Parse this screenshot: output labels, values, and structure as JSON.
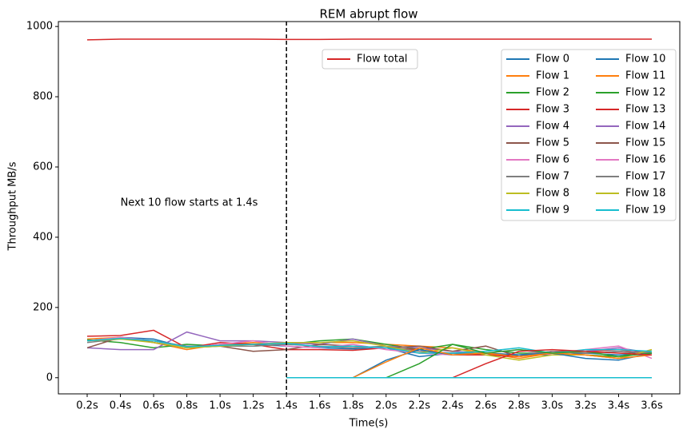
{
  "chart_data": {
    "type": "line",
    "title": "REM abrupt flow",
    "xlabel": "Time(s)",
    "ylabel": "Throughput MB/s",
    "categories": [
      "0.2s",
      "0.4s",
      "0.6s",
      "0.8s",
      "1.0s",
      "1.2s",
      "1.4s",
      "1.6s",
      "1.8s",
      "2.0s",
      "2.2s",
      "2.4s",
      "2.6s",
      "2.8s",
      "3.0s",
      "3.2s",
      "3.4s",
      "3.6s"
    ],
    "ylim": [
      -46,
      1014
    ],
    "yticks": [
      0,
      200,
      400,
      600,
      800,
      1000
    ],
    "vline": "1.4s",
    "annotation": {
      "text": "Next 10 flow starts at 1.4s",
      "x": "0.8s",
      "y": 498
    },
    "total": {
      "name": "Flow total",
      "color": "#d62728",
      "values": [
        962,
        964,
        964,
        964,
        964,
        964,
        963,
        963,
        964,
        964,
        964,
        964,
        964,
        964,
        964,
        964,
        964,
        964
      ]
    },
    "series": [
      {
        "name": "Flow 0",
        "color": "#1f77b4",
        "values": [
          105,
          115,
          110,
          85,
          95,
          95,
          90,
          85,
          82,
          85,
          60,
          70,
          65,
          65,
          65,
          70,
          65,
          70
        ]
      },
      {
        "name": "Flow 1",
        "color": "#ff7f0e",
        "values": [
          110,
          115,
          100,
          80,
          95,
          100,
          95,
          100,
          100,
          95,
          90,
          85,
          70,
          55,
          70,
          65,
          55,
          80
        ]
      },
      {
        "name": "Flow 2",
        "color": "#2ca02c",
        "values": [
          108,
          100,
          85,
          95,
          90,
          90,
          95,
          105,
          110,
          95,
          80,
          95,
          80,
          70,
          70,
          65,
          60,
          75
        ]
      },
      {
        "name": "Flow 3",
        "color": "#d62728",
        "values": [
          118,
          120,
          135,
          85,
          100,
          95,
          80,
          80,
          78,
          85,
          80,
          65,
          65,
          60,
          75,
          75,
          80,
          70
        ]
      },
      {
        "name": "Flow 4",
        "color": "#9467bd",
        "values": [
          85,
          80,
          80,
          130,
          105,
          105,
          100,
          95,
          110,
          90,
          85,
          75,
          70,
          65,
          70,
          75,
          85,
          70
        ]
      },
      {
        "name": "Flow 5",
        "color": "#8c564b",
        "values": [
          85,
          115,
          100,
          85,
          90,
          75,
          80,
          95,
          90,
          85,
          90,
          75,
          90,
          60,
          75,
          70,
          75,
          65
        ]
      },
      {
        "name": "Flow 6",
        "color": "#e377c2",
        "values": [
          105,
          115,
          105,
          85,
          95,
          105,
          90,
          85,
          95,
          80,
          70,
          65,
          70,
          80,
          65,
          80,
          90,
          55
        ]
      },
      {
        "name": "Flow 7",
        "color": "#7f7f7f",
        "values": [
          100,
          110,
          105,
          90,
          90,
          90,
          95,
          90,
          85,
          90,
          75,
          70,
          70,
          65,
          75,
          70,
          75,
          70
        ]
      },
      {
        "name": "Flow 8",
        "color": "#bcbd22",
        "values": [
          105,
          110,
          100,
          85,
          90,
          95,
          100,
          100,
          105,
          90,
          70,
          85,
          65,
          50,
          65,
          65,
          55,
          80
        ]
      },
      {
        "name": "Flow 9",
        "color": "#17becf",
        "values": [
          105,
          112,
          105,
          88,
          92,
          95,
          98,
          88,
          90,
          85,
          70,
          70,
          75,
          85,
          70,
          80,
          80,
          75
        ]
      },
      {
        "name": "Flow 10",
        "color": "#1f77b4",
        "values": [
          null,
          null,
          null,
          null,
          null,
          null,
          0,
          0,
          0,
          50,
          80,
          65,
          70,
          65,
          70,
          55,
          50,
          70
        ]
      },
      {
        "name": "Flow 11",
        "color": "#ff7f0e",
        "values": [
          null,
          null,
          null,
          null,
          null,
          null,
          0,
          0,
          0,
          45,
          85,
          65,
          70,
          60,
          70,
          65,
          55,
          65
        ]
      },
      {
        "name": "Flow 12",
        "color": "#2ca02c",
        "values": [
          null,
          null,
          null,
          null,
          null,
          null,
          0,
          0,
          0,
          0,
          40,
          95,
          70,
          80,
          70,
          75,
          60,
          70
        ]
      },
      {
        "name": "Flow 13",
        "color": "#d62728",
        "values": [
          null,
          null,
          null,
          null,
          null,
          null,
          0,
          0,
          0,
          0,
          0,
          0,
          40,
          75,
          80,
          75,
          70,
          65
        ]
      },
      {
        "name": "Flow 14",
        "color": "#9467bd",
        "values": [
          null,
          null,
          null,
          null,
          null,
          null,
          0,
          0,
          0,
          0,
          0,
          0,
          0,
          0,
          0,
          0,
          0,
          0
        ]
      },
      {
        "name": "Flow 15",
        "color": "#8c564b",
        "values": [
          null,
          null,
          null,
          null,
          null,
          null,
          0,
          0,
          0,
          0,
          0,
          0,
          0,
          0,
          0,
          0,
          0,
          0
        ]
      },
      {
        "name": "Flow 16",
        "color": "#e377c2",
        "values": [
          null,
          null,
          null,
          null,
          null,
          null,
          0,
          0,
          0,
          0,
          0,
          0,
          0,
          0,
          0,
          0,
          0,
          0
        ]
      },
      {
        "name": "Flow 17",
        "color": "#7f7f7f",
        "values": [
          null,
          null,
          null,
          null,
          null,
          null,
          0,
          0,
          0,
          0,
          0,
          0,
          0,
          0,
          0,
          0,
          0,
          0
        ]
      },
      {
        "name": "Flow 18",
        "color": "#bcbd22",
        "values": [
          null,
          null,
          null,
          null,
          null,
          null,
          0,
          0,
          0,
          0,
          0,
          0,
          0,
          0,
          0,
          0,
          0,
          0
        ]
      },
      {
        "name": "Flow 19",
        "color": "#17becf",
        "values": [
          null,
          null,
          null,
          null,
          null,
          null,
          0,
          0,
          0,
          0,
          0,
          0,
          0,
          0,
          0,
          0,
          0,
          0
        ]
      }
    ]
  }
}
